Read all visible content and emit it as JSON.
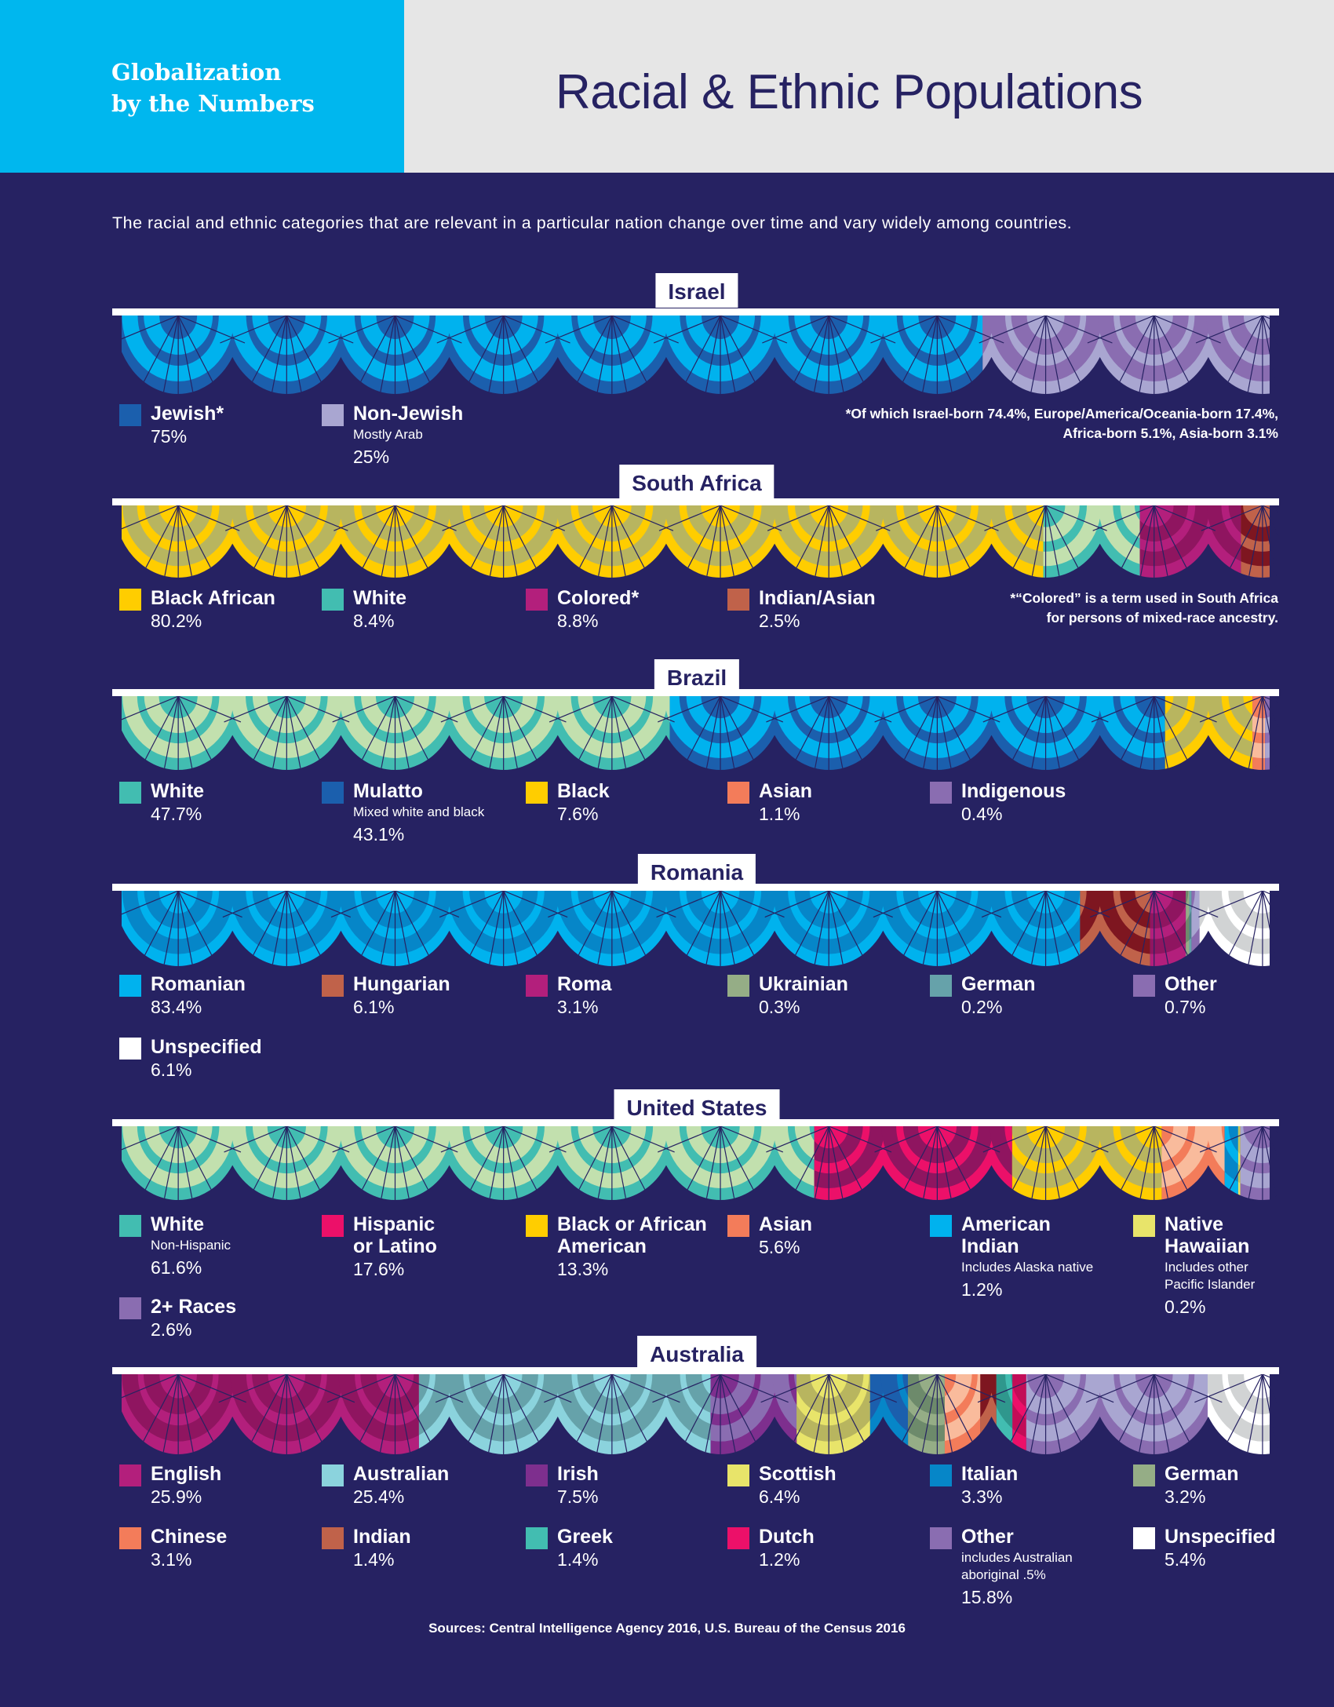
{
  "header": {
    "brand_line1": "Globalization",
    "brand_line2": "by the Numbers",
    "title": "Racial & Ethnic Populations"
  },
  "intro": "The racial and ethnic categories that are relevant in a particular nation change over time and vary widely among countries.",
  "sources": "Sources: Central Intelligence Agency 2016, U.S. Bureau of the Census 2016",
  "chart_data": [
    {
      "type": "bar",
      "stacked": true,
      "title": "Israel",
      "unit": "%",
      "categories": [
        "Jewish*",
        "Non-Jewish"
      ],
      "values": [
        75,
        25
      ],
      "colors": [
        "#1b5fad",
        "#a9a6d1"
      ],
      "stripe_colors": [
        "#00b2ee",
        "#8a6db1"
      ],
      "legend": [
        {
          "label": "Jewish*",
          "sub": "",
          "value": "75%",
          "color": "#1b5fad"
        },
        {
          "label": "Non-Jewish",
          "sub": "Mostly Arab",
          "value": "25%",
          "color": "#a9a6d1"
        }
      ],
      "note": "*Of which Israel-born 74.4%, Europe/America/Oceania-born 17.4%,\nAfrica-born 5.1%, Asia-born 3.1%"
    },
    {
      "type": "bar",
      "stacked": true,
      "title": "South Africa",
      "unit": "%",
      "categories": [
        "Black African",
        "White",
        "Colored*",
        "Indian/Asian"
      ],
      "values": [
        80.2,
        8.4,
        8.8,
        2.5
      ],
      "colors": [
        "#ffcd00",
        "#42bdb1",
        "#b31f7c",
        "#c0624a"
      ],
      "stripe_colors": [
        "#b8b55f",
        "#c2e0ae",
        "#8f1560",
        "#7e1620"
      ],
      "legend": [
        {
          "label": "Black African",
          "sub": "",
          "value": "80.2%",
          "color": "#ffcd00"
        },
        {
          "label": "White",
          "sub": "",
          "value": "8.4%",
          "color": "#42bdb1"
        },
        {
          "label": "Colored*",
          "sub": "",
          "value": "8.8%",
          "color": "#b31f7c"
        },
        {
          "label": "Indian/Asian",
          "sub": "",
          "value": "2.5%",
          "color": "#c0624a"
        }
      ],
      "note": "*“Colored” is a term used in South Africa\nfor persons of mixed-race ancestry."
    },
    {
      "type": "bar",
      "stacked": true,
      "title": "Brazil",
      "unit": "%",
      "categories": [
        "White",
        "Mulatto",
        "Black",
        "Asian",
        "Indigenous"
      ],
      "values": [
        47.7,
        43.1,
        7.6,
        1.1,
        0.4
      ],
      "colors": [
        "#42bdb1",
        "#1b5fad",
        "#ffcd00",
        "#f37c5a",
        "#8a6db1"
      ],
      "stripe_colors": [
        "#c2e0ae",
        "#00b2ee",
        "#b8b55f",
        "#f9bb9c",
        "#a9a6d1"
      ],
      "legend": [
        {
          "label": "White",
          "sub": "",
          "value": "47.7%",
          "color": "#42bdb1"
        },
        {
          "label": "Mulatto",
          "sub": "Mixed white and black",
          "value": "43.1%",
          "color": "#1b5fad"
        },
        {
          "label": "Black",
          "sub": "",
          "value": "7.6%",
          "color": "#ffcd00"
        },
        {
          "label": "Asian",
          "sub": "",
          "value": "1.1%",
          "color": "#f37c5a"
        },
        {
          "label": "Indigenous",
          "sub": "",
          "value": "0.4%",
          "color": "#8a6db1"
        }
      ],
      "note": ""
    },
    {
      "type": "bar",
      "stacked": true,
      "title": "Romania",
      "unit": "%",
      "categories": [
        "Romanian",
        "Hungarian",
        "Roma",
        "Ukrainian",
        "German",
        "Other",
        "Unspecified"
      ],
      "values": [
        83.4,
        6.1,
        3.1,
        0.3,
        0.2,
        0.7,
        6.1
      ],
      "colors": [
        "#00b2ee",
        "#c0624a",
        "#b31f7c",
        "#95ad86",
        "#66a2aa",
        "#8a6db1",
        "#ffffff"
      ],
      "stripe_colors": [
        "#0686c8",
        "#7e1620",
        "#8f1560",
        "#6d8a6b",
        "#4d828a",
        "#a9a6d1",
        "#d1d3d4"
      ],
      "legend": [
        {
          "label": "Romanian",
          "sub": "",
          "value": "83.4%",
          "color": "#00b2ee"
        },
        {
          "label": "Hungarian",
          "sub": "",
          "value": "6.1%",
          "color": "#c0624a"
        },
        {
          "label": "Roma",
          "sub": "",
          "value": "3.1%",
          "color": "#b31f7c"
        },
        {
          "label": "Ukrainian",
          "sub": "",
          "value": "0.3%",
          "color": "#95ad86"
        },
        {
          "label": "German",
          "sub": "",
          "value": "0.2%",
          "color": "#66a2aa"
        },
        {
          "label": "Other",
          "sub": "",
          "value": "0.7%",
          "color": "#8a6db1"
        },
        {
          "label": "Unspecified",
          "sub": "",
          "value": "6.1%",
          "color": "#ffffff"
        }
      ],
      "note": ""
    },
    {
      "type": "bar",
      "stacked": true,
      "title": "United States",
      "unit": "%",
      "categories": [
        "White",
        "Hispanic or Latino",
        "Black or African American",
        "Asian",
        "American Indian",
        "Native Hawaiian",
        "2+ Races"
      ],
      "values": [
        61.6,
        17.6,
        13.3,
        5.6,
        1.2,
        0.2,
        2.6
      ],
      "colors": [
        "#42bdb1",
        "#ec1069",
        "#ffcd00",
        "#f37c5a",
        "#00b2ee",
        "#e8e46a",
        "#8a6db1"
      ],
      "stripe_colors": [
        "#c2e0ae",
        "#8f1560",
        "#b8b55f",
        "#f9bb9c",
        "#0686c8",
        "#c7c45a",
        "#a9a6d1"
      ],
      "legend": [
        {
          "label": "White",
          "sub": "Non-Hispanic",
          "value": "61.6%",
          "color": "#42bdb1"
        },
        {
          "label": "Hispanic\nor Latino",
          "sub": "",
          "value": "17.6%",
          "color": "#ec1069"
        },
        {
          "label": "Black or African\nAmerican",
          "sub": "",
          "value": "13.3%",
          "color": "#ffcd00"
        },
        {
          "label": "Asian",
          "sub": "",
          "value": "5.6%",
          "color": "#f37c5a"
        },
        {
          "label": "American\nIndian",
          "sub": "Includes Alaska native",
          "value": "1.2%",
          "color": "#00b2ee"
        },
        {
          "label": "Native\nHawaiian",
          "sub": "Includes other\nPacific Islander",
          "value": "0.2%",
          "color": "#e8e46a"
        },
        {
          "label": "2+ Races",
          "sub": "",
          "value": "2.6%",
          "color": "#8a6db1"
        }
      ],
      "note": ""
    },
    {
      "type": "bar",
      "stacked": true,
      "title": "Australia",
      "unit": "%",
      "categories": [
        "English",
        "Australian",
        "Irish",
        "Scottish",
        "Italian",
        "German",
        "Chinese",
        "Indian",
        "Greek",
        "Dutch",
        "Other",
        "Unspecified"
      ],
      "values": [
        25.9,
        25.4,
        7.5,
        6.4,
        3.3,
        3.2,
        3.1,
        1.4,
        1.4,
        1.2,
        15.8,
        5.4
      ],
      "colors": [
        "#b31f7c",
        "#8bd3dd",
        "#7e2f8e",
        "#e8e46a",
        "#0686c8",
        "#95ad86",
        "#f37c5a",
        "#c0624a",
        "#42bdb1",
        "#ec1069",
        "#8a6db1",
        "#ffffff"
      ],
      "stripe_colors": [
        "#8f1560",
        "#66a2aa",
        "#8a6db1",
        "#b8b55f",
        "#1b5fad",
        "#6d8a6b",
        "#f9bb9c",
        "#7e1620",
        "#2f978d",
        "#c20d57",
        "#a9a6d1",
        "#d1d3d4"
      ],
      "legend": [
        {
          "label": "English",
          "sub": "",
          "value": "25.9%",
          "color": "#b31f7c"
        },
        {
          "label": "Australian",
          "sub": "",
          "value": "25.4%",
          "color": "#8bd3dd"
        },
        {
          "label": "Irish",
          "sub": "",
          "value": "7.5%",
          "color": "#7e2f8e"
        },
        {
          "label": "Scottish",
          "sub": "",
          "value": "6.4%",
          "color": "#e8e46a"
        },
        {
          "label": "Italian",
          "sub": "",
          "value": "3.3%",
          "color": "#0686c8"
        },
        {
          "label": "German",
          "sub": "",
          "value": "3.2%",
          "color": "#95ad86"
        },
        {
          "label": "Chinese",
          "sub": "",
          "value": "3.1%",
          "color": "#f37c5a"
        },
        {
          "label": "Indian",
          "sub": "",
          "value": "1.4%",
          "color": "#c0624a"
        },
        {
          "label": "Greek",
          "sub": "",
          "value": "1.4%",
          "color": "#42bdb1"
        },
        {
          "label": "Dutch",
          "sub": "",
          "value": "1.2%",
          "color": "#ec1069"
        },
        {
          "label": "Other",
          "sub": "includes Australian\naboriginal .5%",
          "value": "15.8%",
          "color": "#8a6db1"
        },
        {
          "label": "Unspecified",
          "sub": "",
          "value": "5.4%",
          "color": "#ffffff"
        }
      ],
      "note": ""
    }
  ]
}
